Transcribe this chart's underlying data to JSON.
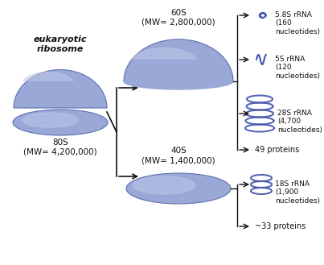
{
  "bg_color": "#ffffff",
  "ribosome_fill": "#9aa8d8",
  "ribosome_light": "#c0c8e8",
  "ribosome_dark": "#6070b0",
  "arrow_color": "#111111",
  "rna_color": "#4455aa",
  "text_color": "#111111",
  "title_text": "eukaryotic\nribosome",
  "main_label": "80S\n(MW= 4,200,000)",
  "large_label": "60S\n(MW= 2,800,000)",
  "small_label": "40S\n(MW= 1,400,000)",
  "items_60s": [
    "5.8S rRNA\n(160\nnucleotides)",
    "5S rRNA\n(120\nnucleotides)",
    "28S rRNA\n(4,700\nnucleotides)",
    "49 proteins"
  ],
  "items_40s": [
    "18S rRNA\n(1,900\nnucleotides)",
    "~33 proteins"
  ]
}
